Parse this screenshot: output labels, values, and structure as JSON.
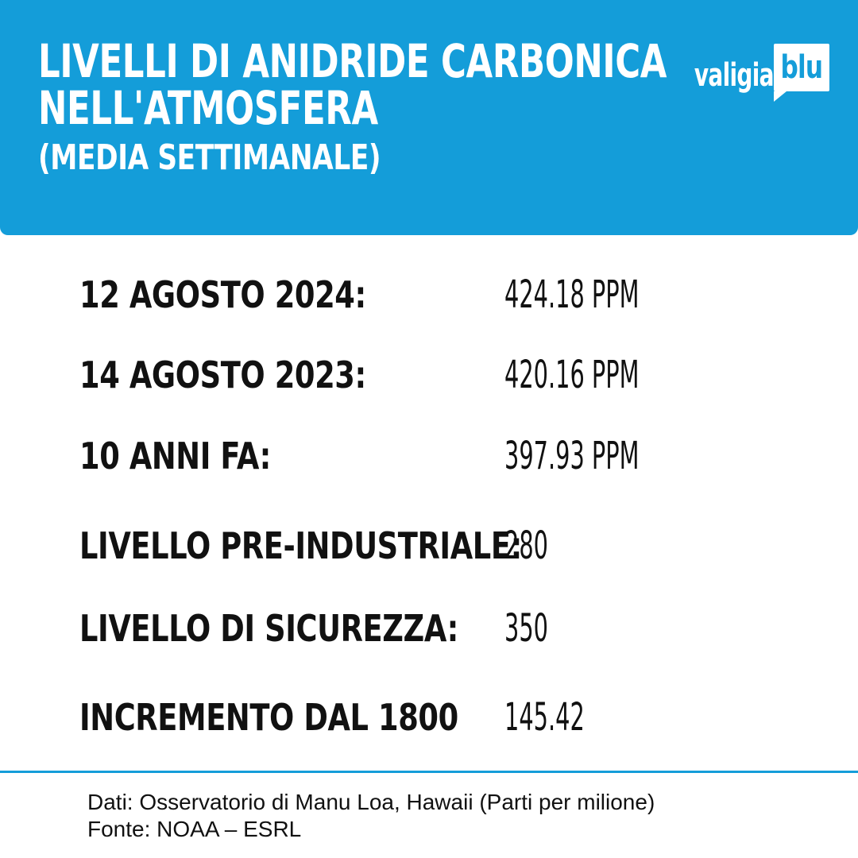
{
  "colors": {
    "brand_blue": "#149DD9",
    "text": "#111111",
    "background": "#ffffff",
    "header_text": "#ffffff"
  },
  "header": {
    "title_line1": "LIVELLI DI ANIDRIDE CARBONICA",
    "title_line2": "NELL'ATMOSFERA",
    "subtitle": "(MEDIA SETTIMANALE)"
  },
  "brand": {
    "wordmark": "valigia",
    "badge": "blu"
  },
  "chart_data": {
    "type": "table",
    "title": "Livelli di anidride carbonica nell'atmosfera (media settimanale)",
    "unit": "PPM (parti per milione)",
    "rows": [
      {
        "label": "12 AGOSTO 2024:",
        "value": "424.18 PPM",
        "numeric": 424.18
      },
      {
        "label": "14 AGOSTO 2023:",
        "value": "420.16 PPM",
        "numeric": 420.16
      },
      {
        "label": "10 ANNI FA:",
        "value": "397.93 PPM",
        "numeric": 397.93
      },
      {
        "label": "LIVELLO PRE-INDUSTRIALE:",
        "value": "280",
        "numeric": 280
      },
      {
        "label": "LIVELLO DI SICUREZZA:",
        "value": "350",
        "numeric": 350
      },
      {
        "label": "INCREMENTO DAL 1800",
        "value": "145.42",
        "numeric": 145.42
      }
    ]
  },
  "footer": {
    "line1": "Dati: Osservatorio di Manu Loa, Hawaii (Parti per milione)",
    "line2": "Fonte: NOAA – ESRL"
  }
}
